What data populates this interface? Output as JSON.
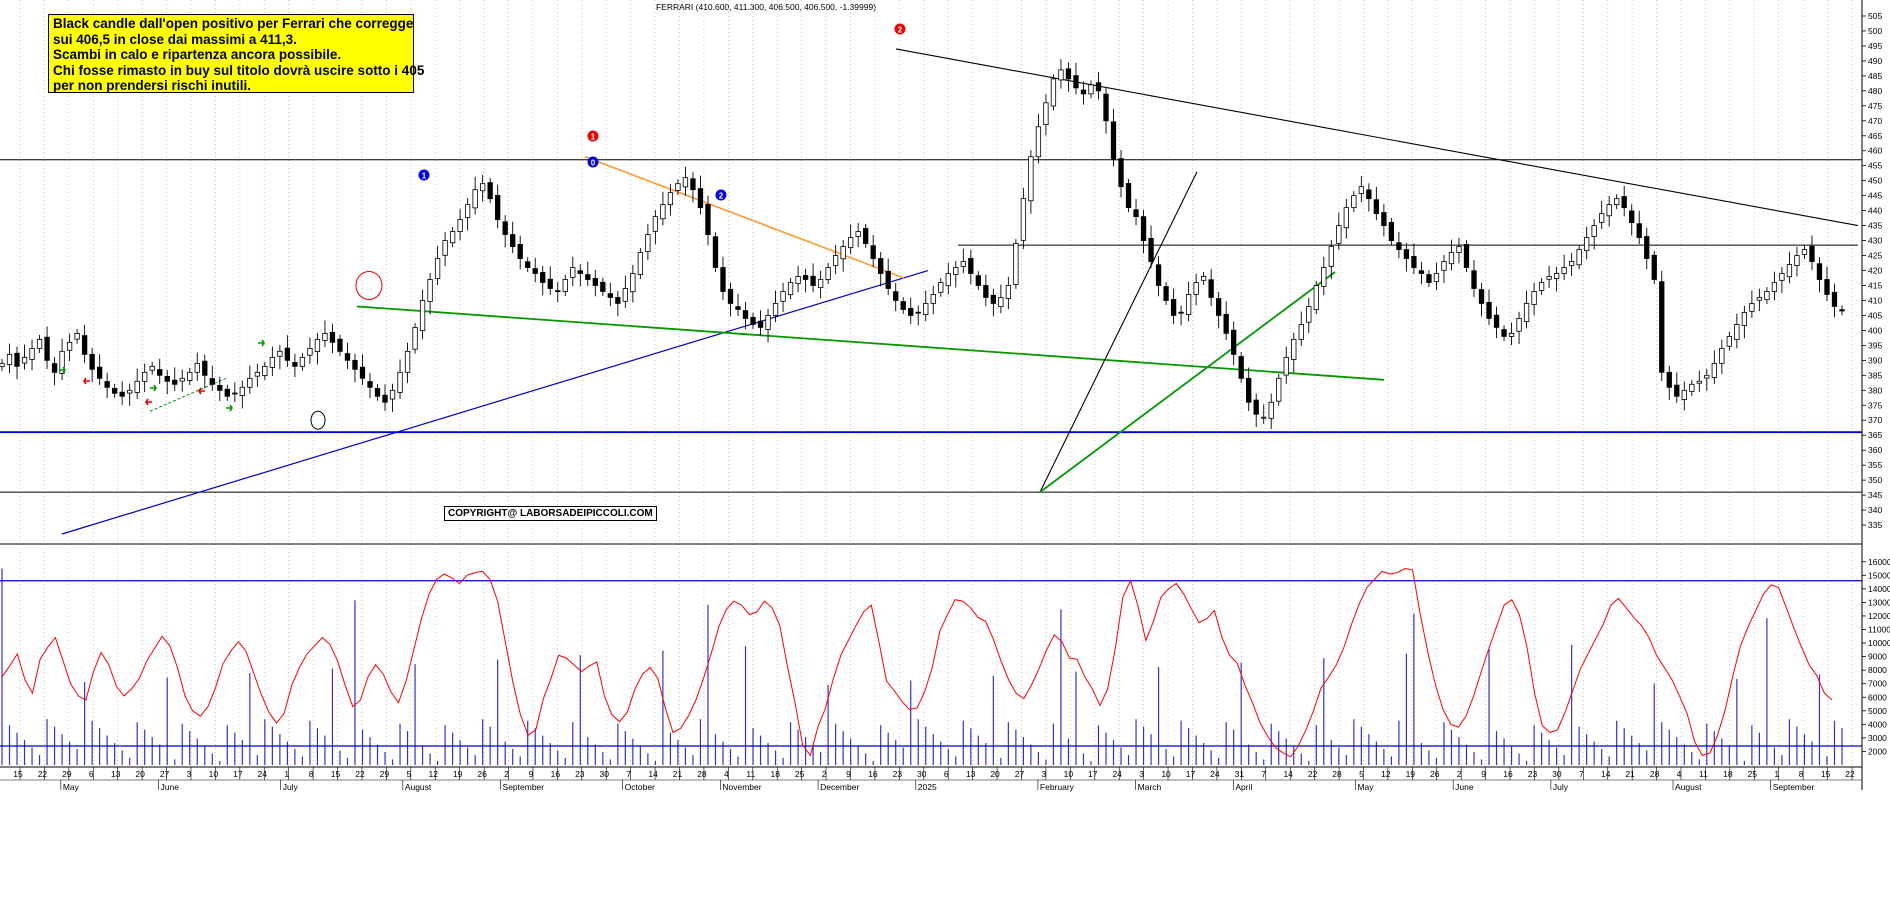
{
  "header": {
    "title": "FERRARI (410.600, 411.300, 406.500, 406.500, -1.39999)"
  },
  "note": {
    "lines": [
      "Black candle dall'open positivo per Ferrari che corregge",
      "sui 406,5 in close dai massimi a 411,3.",
      "Scambi in calo e ripartenza ancora possibile.",
      "Chi fosse rimasto in buy sul titolo  dovrà uscire sotto i 405",
      "per non prendersi rischi inutili."
    ]
  },
  "copyright": "COPYRIGHT@ LABORSADEIPICCOLI.COM",
  "markers": {
    "blue": [
      "1",
      "0",
      "2"
    ],
    "red": [
      "1",
      "2"
    ]
  },
  "colors": {
    "candle_up": "#ffffff",
    "candle_down": "#000000",
    "support_line": "#0000cc",
    "green_line": "#009900",
    "orange_line": "#ff9933",
    "oscillator": "#ff0000",
    "volume": "#3333cc",
    "marker_red": "#ee0000",
    "marker_blue": "#0000ee",
    "note_bg": "#ffff00"
  },
  "chart_data": [
    {
      "type": "candlestick",
      "title": "FERRARI (410.600, 411.300, 406.500, 406.500, -1.39999)",
      "last_bar": {
        "open": 410.6,
        "high": 411.3,
        "low": 406.5,
        "close": 406.5,
        "change": -1.39999
      },
      "ylim": [
        330,
        505
      ],
      "y_ticks": [
        335,
        340,
        345,
        350,
        355,
        360,
        365,
        370,
        375,
        380,
        385,
        390,
        395,
        400,
        405,
        410,
        415,
        420,
        425,
        430,
        435,
        440,
        445,
        450,
        455,
        460,
        465,
        470,
        475,
        480,
        485,
        490,
        495,
        500,
        505
      ],
      "horizontal_levels": [
        457,
        428.5,
        366,
        346
      ],
      "x_day_labels": [
        "15",
        "22",
        "29",
        "6",
        "13",
        "20",
        "27",
        "3",
        "10",
        "17",
        "24",
        "1",
        "8",
        "15",
        "22",
        "29",
        "5",
        "12",
        "19",
        "26",
        "2",
        "9",
        "16",
        "23",
        "30",
        "7",
        "14",
        "21",
        "28",
        "4",
        "11",
        "18",
        "25",
        "2",
        "9",
        "16",
        "23",
        "30",
        "6",
        "13",
        "20",
        "27",
        "3",
        "10",
        "17",
        "24",
        "3",
        "10",
        "17",
        "24",
        "31",
        "7",
        "14",
        "22",
        "28",
        "5",
        "12",
        "19",
        "26",
        "2",
        "9",
        "16",
        "23",
        "30",
        "7",
        "14",
        "21",
        "28",
        "4",
        "11",
        "18",
        "25",
        "1",
        "8",
        "15",
        "22"
      ],
      "x_month_labels": [
        "May",
        "June",
        "July",
        "August",
        "September",
        "October",
        "November",
        "December",
        "2025",
        "February",
        "March",
        "April",
        "May",
        "June",
        "July",
        "August",
        "September"
      ],
      "approx_closes": [
        389,
        392,
        388,
        391,
        394,
        397,
        390,
        386,
        393,
        396,
        399,
        392,
        387,
        384,
        381,
        379,
        378,
        380,
        383,
        386,
        388,
        385,
        383,
        382,
        384,
        386,
        389,
        385,
        382,
        380,
        378,
        379,
        381,
        384,
        386,
        388,
        391,
        393,
        390,
        388,
        391,
        394,
        397,
        399,
        396,
        393,
        390,
        387,
        384,
        381,
        378,
        376,
        380,
        386,
        393,
        401,
        410,
        417,
        424,
        430,
        433,
        437,
        442,
        447,
        449,
        444,
        437,
        432,
        428,
        424,
        421,
        419,
        416,
        414,
        413,
        417,
        421,
        419,
        417,
        415,
        413,
        411,
        409,
        414,
        419,
        426,
        432,
        438,
        442,
        446,
        449,
        451,
        447,
        441,
        432,
        421,
        413,
        409,
        407,
        404,
        402,
        401,
        405,
        409,
        413,
        416,
        418,
        417,
        415,
        417,
        421,
        425,
        428,
        431,
        433,
        429,
        424,
        419,
        414,
        410,
        407,
        405,
        406,
        409,
        412,
        416,
        419,
        421,
        423,
        419,
        415,
        411,
        409,
        411,
        415,
        429,
        444,
        458,
        468,
        476,
        484,
        487,
        484,
        481,
        479,
        482,
        480,
        470,
        457,
        448,
        441,
        438,
        430,
        423,
        415,
        410,
        405,
        406,
        412,
        416,
        418,
        411,
        405,
        399,
        392,
        384,
        376,
        372,
        371,
        376,
        384,
        391,
        397,
        402,
        408,
        415,
        421,
        428,
        435,
        441,
        445,
        448,
        444,
        439,
        435,
        430,
        427,
        424,
        421,
        419,
        416,
        419,
        423,
        426,
        428,
        421,
        414,
        409,
        404,
        401,
        398,
        399,
        404,
        409,
        413,
        416,
        418,
        419,
        421,
        423,
        427,
        431,
        435,
        439,
        442,
        444,
        441,
        436,
        431,
        424,
        417,
        386,
        381,
        378,
        380,
        382,
        383,
        385,
        389,
        394,
        398,
        402,
        406,
        409,
        411,
        413,
        416,
        419,
        422,
        425,
        427,
        423,
        417,
        412,
        408,
        406.5
      ]
    },
    {
      "type": "line",
      "series": [
        {
          "values": [
            7500,
            8300,
            9200,
            7300,
            6300,
            8800,
            9700,
            10400,
            8700,
            7000,
            6100,
            5800,
            7900,
            9300,
            8400,
            6800,
            6100,
            6600,
            7400,
            8700,
            9600,
            10500,
            9800,
            8200,
            6100,
            5000,
            4600,
            5300,
            6700,
            8500,
            9400,
            10100,
            9400,
            7800,
            6200,
            4900,
            4100,
            4800,
            6900,
            8200,
            9200,
            9800,
            10400,
            9900,
            8700,
            6900,
            5300,
            5800,
            7500,
            8400,
            7700,
            6400,
            5600,
            7200,
            9500,
            11800,
            13600,
            14700,
            15100,
            14800,
            14400,
            15000,
            15200,
            15300,
            14700,
            13100,
            10100,
            7100,
            4700,
            3200,
            3600,
            5900,
            7400,
            9100,
            8900,
            8400,
            7900,
            8300,
            8600,
            6100,
            4700,
            4200,
            4900,
            6600,
            7700,
            8200,
            7400,
            5200,
            3400,
            3700,
            4600,
            5800,
            7400,
            9200,
            11200,
            12500,
            13100,
            12800,
            12100,
            12300,
            13100,
            12600,
            11300,
            8300,
            5600,
            2500,
            1700,
            3800,
            5200,
            7300,
            9100,
            10200,
            11300,
            12300,
            12800,
            10100,
            7200,
            6500,
            5700,
            5100,
            5200,
            6400,
            8200,
            10900,
            12100,
            13200,
            13100,
            12600,
            11900,
            11600,
            10300,
            8700,
            7300,
            6300,
            5900,
            6900,
            8100,
            9500,
            10600,
            10100,
            8900,
            8800,
            7500,
            6600,
            5400,
            6600,
            9600,
            13400,
            14600,
            12700,
            10200,
            11600,
            13400,
            14000,
            14400,
            13600,
            12500,
            11500,
            11800,
            12400,
            10400,
            9100,
            8500,
            6900,
            5600,
            4100,
            3100,
            2300,
            1900,
            1600,
            2400,
            3600,
            5000,
            6700,
            7500,
            8400,
            9700,
            11400,
            12900,
            14100,
            14700,
            15300,
            15100,
            15200,
            15500,
            15400,
            12100,
            9300,
            6900,
            5100,
            4000,
            3800,
            4600,
            6100,
            7900,
            9600,
            11200,
            12800,
            13200,
            12100,
            9700,
            6300,
            3900,
            3400,
            3600,
            4900,
            6500,
            8100,
            9200,
            10300,
            11400,
            12800,
            13300,
            12600,
            11900,
            11300,
            10400,
            9100,
            8200,
            7300,
            6100,
            4800,
            2700,
            1700,
            1900,
            3200,
            5100,
            7600,
            9800,
            11200,
            12400,
            13600,
            14300,
            14100,
            12600,
            11100,
            9700,
            8400,
            7600,
            6300,
            5800
          ]
        }
      ],
      "ylim": [
        1000,
        16500
      ],
      "y_ticks": [
        2000,
        3000,
        4000,
        5000,
        6000,
        7000,
        8000,
        9000,
        10000,
        11000,
        12000,
        13000,
        14000,
        15000,
        16000
      ],
      "reference_levels": [
        14600,
        2400
      ]
    }
  ]
}
